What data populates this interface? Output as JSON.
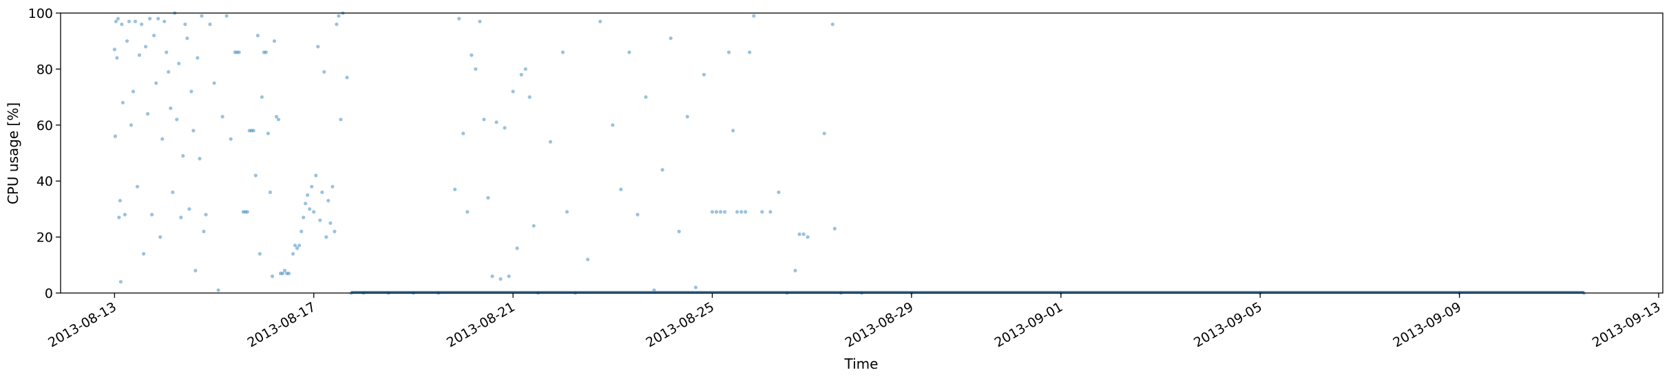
{
  "chart_data": {
    "type": "scatter",
    "title": "",
    "xlabel": "Time",
    "ylabel": "CPU usage [%]",
    "ylim": [
      0,
      100
    ],
    "xlim": [
      "2013-08-11T22:00",
      "2013-09-13T02:00"
    ],
    "x_ticks": [
      "2013-08-13",
      "2013-08-17",
      "2013-08-21",
      "2013-08-25",
      "2013-08-29",
      "2013-09-01",
      "2013-09-05",
      "2013-09-09",
      "2013-09-13"
    ],
    "y_ticks": [
      0,
      20,
      40,
      60,
      80,
      100
    ],
    "grid": false,
    "legend": "none",
    "point_color": "#1f77b4",
    "point_alpha": 0.45,
    "series": [
      {
        "points": [
          [
            "2013-08-13T00:00",
            87
          ],
          [
            "2013-08-13T00:20",
            56
          ],
          [
            "2013-08-13T00:40",
            97
          ],
          [
            "2013-08-13T01:10",
            84
          ],
          [
            "2013-08-13T01:40",
            98
          ],
          [
            "2013-08-13T02:10",
            27
          ],
          [
            "2013-08-13T02:40",
            33
          ],
          [
            "2013-08-13T03:00",
            4
          ],
          [
            "2013-08-13T03:30",
            96
          ],
          [
            "2013-08-13T04:00",
            68
          ],
          [
            "2013-08-13T05:00",
            28
          ],
          [
            "2013-08-13T06:00",
            90
          ],
          [
            "2013-08-13T07:00",
            97
          ],
          [
            "2013-08-13T08:00",
            60
          ],
          [
            "2013-08-13T09:00",
            72
          ],
          [
            "2013-08-13T10:00",
            97
          ],
          [
            "2013-08-13T11:00",
            38
          ],
          [
            "2013-08-13T12:00",
            85
          ],
          [
            "2013-08-13T13:00",
            96
          ],
          [
            "2013-08-13T14:00",
            14
          ],
          [
            "2013-08-13T15:00",
            88
          ],
          [
            "2013-08-13T16:00",
            64
          ],
          [
            "2013-08-13T17:00",
            98
          ],
          [
            "2013-08-13T18:00",
            28
          ],
          [
            "2013-08-13T19:00",
            92
          ],
          [
            "2013-08-13T20:00",
            75
          ],
          [
            "2013-08-13T21:00",
            98
          ],
          [
            "2013-08-13T22:00",
            20
          ],
          [
            "2013-08-13T23:00",
            55
          ],
          [
            "2013-08-14T00:00",
            97
          ],
          [
            "2013-08-14T01:00",
            86
          ],
          [
            "2013-08-14T02:00",
            79
          ],
          [
            "2013-08-14T03:00",
            66
          ],
          [
            "2013-08-14T04:00",
            36
          ],
          [
            "2013-08-14T05:00",
            100
          ],
          [
            "2013-08-14T06:00",
            62
          ],
          [
            "2013-08-14T07:00",
            82
          ],
          [
            "2013-08-14T08:00",
            27
          ],
          [
            "2013-08-14T09:00",
            49
          ],
          [
            "2013-08-14T10:00",
            96
          ],
          [
            "2013-08-14T11:00",
            91
          ],
          [
            "2013-08-14T12:00",
            30
          ],
          [
            "2013-08-14T13:00",
            72
          ],
          [
            "2013-08-14T14:00",
            58
          ],
          [
            "2013-08-14T15:00",
            8
          ],
          [
            "2013-08-14T16:00",
            84
          ],
          [
            "2013-08-14T17:00",
            48
          ],
          [
            "2013-08-14T18:00",
            99
          ],
          [
            "2013-08-14T19:00",
            22
          ],
          [
            "2013-08-14T20:00",
            28
          ],
          [
            "2013-08-14T22:00",
            96
          ],
          [
            "2013-08-15T00:00",
            75
          ],
          [
            "2013-08-15T02:00",
            1
          ],
          [
            "2013-08-15T04:00",
            63
          ],
          [
            "2013-08-15T06:00",
            99
          ],
          [
            "2013-08-15T08:00",
            55
          ],
          [
            "2013-08-15T10:00",
            86
          ],
          [
            "2013-08-15T11:00",
            86
          ],
          [
            "2013-08-15T12:00",
            86
          ],
          [
            "2013-08-15T14:00",
            29
          ],
          [
            "2013-08-15T15:00",
            29
          ],
          [
            "2013-08-15T16:00",
            29
          ],
          [
            "2013-08-15T17:00",
            58
          ],
          [
            "2013-08-15T18:00",
            58
          ],
          [
            "2013-08-15T19:00",
            58
          ],
          [
            "2013-08-15T20:00",
            42
          ],
          [
            "2013-08-15T21:00",
            92
          ],
          [
            "2013-08-15T22:00",
            14
          ],
          [
            "2013-08-15T23:00",
            70
          ],
          [
            "2013-08-16T00:00",
            86
          ],
          [
            "2013-08-16T01:00",
            86
          ],
          [
            "2013-08-16T02:00",
            57
          ],
          [
            "2013-08-16T03:00",
            36
          ],
          [
            "2013-08-16T04:00",
            6
          ],
          [
            "2013-08-16T05:00",
            90
          ],
          [
            "2013-08-16T06:00",
            63
          ],
          [
            "2013-08-16T07:00",
            62
          ],
          [
            "2013-08-16T08:00",
            7
          ],
          [
            "2013-08-16T09:00",
            7
          ],
          [
            "2013-08-16T10:00",
            8
          ],
          [
            "2013-08-16T11:00",
            7
          ],
          [
            "2013-08-16T12:00",
            7
          ],
          [
            "2013-08-16T14:00",
            14
          ],
          [
            "2013-08-16T15:00",
            17
          ],
          [
            "2013-08-16T16:00",
            16
          ],
          [
            "2013-08-16T17:00",
            17
          ],
          [
            "2013-08-16T18:00",
            22
          ],
          [
            "2013-08-16T19:00",
            27
          ],
          [
            "2013-08-16T20:00",
            32
          ],
          [
            "2013-08-16T21:00",
            35
          ],
          [
            "2013-08-16T22:00",
            30
          ],
          [
            "2013-08-16T23:00",
            38
          ],
          [
            "2013-08-17T00:00",
            29
          ],
          [
            "2013-08-17T01:00",
            42
          ],
          [
            "2013-08-17T02:00",
            88
          ],
          [
            "2013-08-17T03:00",
            26
          ],
          [
            "2013-08-17T04:00",
            36
          ],
          [
            "2013-08-17T05:00",
            79
          ],
          [
            "2013-08-17T06:00",
            20
          ],
          [
            "2013-08-17T07:00",
            33
          ],
          [
            "2013-08-17T08:00",
            25
          ],
          [
            "2013-08-17T09:00",
            38
          ],
          [
            "2013-08-17T10:00",
            22
          ],
          [
            "2013-08-17T11:00",
            96
          ],
          [
            "2013-08-17T12:00",
            99
          ],
          [
            "2013-08-17T13:00",
            62
          ],
          [
            "2013-08-17T14:00",
            100
          ],
          [
            "2013-08-17T16:00",
            77
          ],
          [
            "2013-08-17T18:00",
            0
          ],
          [
            "2013-08-18T00:00",
            0
          ],
          [
            "2013-08-18T12:00",
            0
          ],
          [
            "2013-08-19T00:00",
            0
          ],
          [
            "2013-08-19T12:00",
            0
          ],
          [
            "2013-08-19T20:00",
            37
          ],
          [
            "2013-08-19T22:00",
            98
          ],
          [
            "2013-08-20T00:00",
            57
          ],
          [
            "2013-08-20T02:00",
            29
          ],
          [
            "2013-08-20T04:00",
            85
          ],
          [
            "2013-08-20T06:00",
            80
          ],
          [
            "2013-08-20T08:00",
            97
          ],
          [
            "2013-08-20T10:00",
            62
          ],
          [
            "2013-08-20T12:00",
            34
          ],
          [
            "2013-08-20T14:00",
            6
          ],
          [
            "2013-08-20T16:00",
            61
          ],
          [
            "2013-08-20T18:00",
            5
          ],
          [
            "2013-08-20T20:00",
            59
          ],
          [
            "2013-08-20T22:00",
            6
          ],
          [
            "2013-08-21T00:00",
            72
          ],
          [
            "2013-08-21T02:00",
            16
          ],
          [
            "2013-08-21T04:00",
            78
          ],
          [
            "2013-08-21T06:00",
            80
          ],
          [
            "2013-08-21T08:00",
            70
          ],
          [
            "2013-08-21T10:00",
            24
          ],
          [
            "2013-08-21T12:00",
            0
          ],
          [
            "2013-08-21T18:00",
            54
          ],
          [
            "2013-08-22T00:00",
            86
          ],
          [
            "2013-08-22T02:00",
            29
          ],
          [
            "2013-08-22T06:00",
            0
          ],
          [
            "2013-08-22T12:00",
            12
          ],
          [
            "2013-08-22T18:00",
            97
          ],
          [
            "2013-08-23T00:00",
            60
          ],
          [
            "2013-08-23T04:00",
            37
          ],
          [
            "2013-08-23T08:00",
            86
          ],
          [
            "2013-08-23T12:00",
            28
          ],
          [
            "2013-08-23T16:00",
            70
          ],
          [
            "2013-08-23T20:00",
            1
          ],
          [
            "2013-08-24T00:00",
            44
          ],
          [
            "2013-08-24T04:00",
            91
          ],
          [
            "2013-08-24T08:00",
            22
          ],
          [
            "2013-08-24T12:00",
            63
          ],
          [
            "2013-08-24T16:00",
            2
          ],
          [
            "2013-08-24T20:00",
            78
          ],
          [
            "2013-08-25T00:00",
            29
          ],
          [
            "2013-08-25T02:00",
            29
          ],
          [
            "2013-08-25T04:00",
            29
          ],
          [
            "2013-08-25T06:00",
            29
          ],
          [
            "2013-08-25T08:00",
            86
          ],
          [
            "2013-08-25T10:00",
            58
          ],
          [
            "2013-08-25T12:00",
            29
          ],
          [
            "2013-08-25T14:00",
            29
          ],
          [
            "2013-08-25T16:00",
            29
          ],
          [
            "2013-08-25T18:00",
            86
          ],
          [
            "2013-08-25T20:00",
            99
          ],
          [
            "2013-08-26T00:00",
            29
          ],
          [
            "2013-08-26T04:00",
            29
          ],
          [
            "2013-08-26T08:00",
            36
          ],
          [
            "2013-08-26T12:00",
            0
          ],
          [
            "2013-08-26T16:00",
            8
          ],
          [
            "2013-08-26T18:00",
            21
          ],
          [
            "2013-08-26T20:00",
            21
          ],
          [
            "2013-08-26T22:00",
            20
          ],
          [
            "2013-08-27T06:00",
            57
          ],
          [
            "2013-08-27T10:00",
            96
          ],
          [
            "2013-08-27T11:00",
            23
          ],
          [
            "2013-08-27T14:00",
            0
          ],
          [
            "2013-08-28T00:00",
            0
          ],
          [
            "2013-08-29T00:00",
            0
          ],
          [
            "2013-09-01T00:00",
            0
          ],
          [
            "2013-09-05T00:00",
            0
          ],
          [
            "2013-09-09T00:00",
            0
          ],
          [
            "2013-09-11T12:00",
            0
          ]
        ]
      }
    ]
  }
}
